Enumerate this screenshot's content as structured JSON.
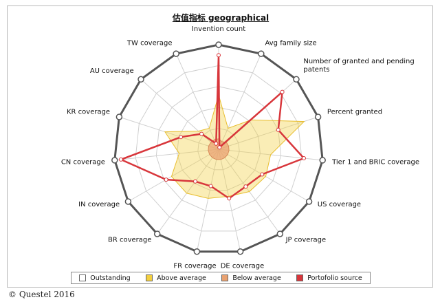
{
  "chart_data": {
    "type": "radar",
    "title": "估值指标 geographical",
    "axes": [
      "Invention count",
      "Avg family size",
      "Number of granted and pending patents",
      "Percent granted",
      "Tier 1 and BRIC coverage",
      "US coverage",
      "JP coverage",
      "DE coverage",
      "FR coverage",
      "BR coverage",
      "IN coverage",
      "CN coverage",
      "KR coverage",
      "AU coverage",
      "TW coverage"
    ],
    "scale": [
      0,
      5
    ],
    "series": [
      {
        "name": "Outstanding",
        "values": [
          5,
          5,
          5,
          5,
          5,
          5,
          5,
          5,
          5,
          5,
          5,
          5,
          5,
          5,
          5
        ]
      },
      {
        "name": "Above average",
        "values": [
          2.6,
          1.1,
          2.1,
          4.3,
          2.5,
          2.6,
          2.5,
          2.3,
          2.4,
          2.6,
          2.6,
          1.9,
          2.7,
          1.3,
          1.1
        ]
      },
      {
        "name": "Below average",
        "values": [
          0.5,
          0.4,
          0.5,
          0.5,
          0.5,
          0.5,
          0.5,
          0.5,
          0.5,
          0.5,
          0.5,
          0.5,
          0.5,
          0.5,
          0.5
        ]
      },
      {
        "name": "Portofolio source",
        "values": [
          4.5,
          0.1,
          4.1,
          3.0,
          4.1,
          2.4,
          2.2,
          2.4,
          1.8,
          1.9,
          2.9,
          4.7,
          1.9,
          1.1,
          0.3
        ]
      }
    ],
    "colors": {
      "Outstanding": "#555555",
      "Above average": "#f3cf3f",
      "Below average": "#e9a271",
      "Portofolio source": "#d8363b"
    },
    "grid": true,
    "legend_position": "bottom"
  },
  "legend": [
    {
      "label": "Outstanding",
      "color": "#ffffff"
    },
    {
      "label": "Above average",
      "color": "#f3cf3f"
    },
    {
      "label": "Below average",
      "color": "#e9a271"
    },
    {
      "label": "Portofolio source",
      "color": "#d8363b"
    }
  ],
  "copyright": "© Questel 2016"
}
